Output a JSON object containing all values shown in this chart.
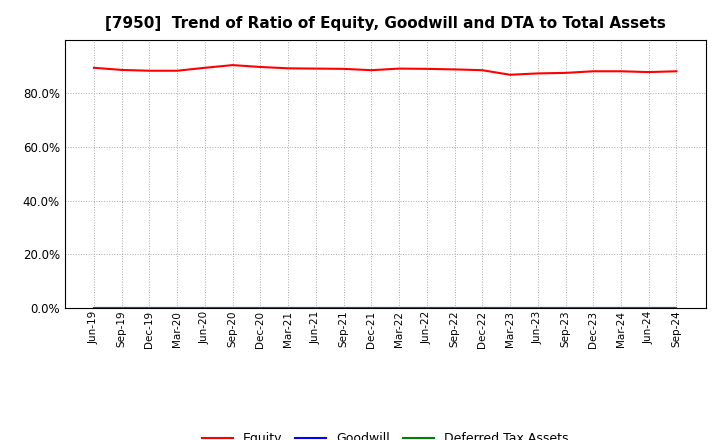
{
  "title": "[7950]  Trend of Ratio of Equity, Goodwill and DTA to Total Assets",
  "x_labels": [
    "Jun-19",
    "Sep-19",
    "Dec-19",
    "Mar-20",
    "Jun-20",
    "Sep-20",
    "Dec-20",
    "Mar-21",
    "Jun-21",
    "Sep-21",
    "Dec-21",
    "Mar-22",
    "Jun-22",
    "Sep-22",
    "Dec-22",
    "Mar-23",
    "Jun-23",
    "Sep-23",
    "Dec-23",
    "Mar-24",
    "Jun-24",
    "Sep-24"
  ],
  "equity": [
    0.895,
    0.887,
    0.884,
    0.884,
    0.895,
    0.905,
    0.898,
    0.893,
    0.892,
    0.891,
    0.886,
    0.892,
    0.891,
    0.889,
    0.886,
    0.869,
    0.874,
    0.876,
    0.882,
    0.882,
    0.879,
    0.882
  ],
  "goodwill": [
    0.0,
    0.0,
    0.0,
    0.0,
    0.0,
    0.0,
    0.0,
    0.0,
    0.0,
    0.0,
    0.0,
    0.0,
    0.0,
    0.0,
    0.0,
    0.0,
    0.0,
    0.0,
    0.0,
    0.0,
    0.0,
    0.0
  ],
  "dta": [
    0.0,
    0.0,
    0.0,
    0.0,
    0.0,
    0.0,
    0.0,
    0.0,
    0.0,
    0.0,
    0.0,
    0.0,
    0.0,
    0.0,
    0.0,
    0.0,
    0.0,
    0.0,
    0.0,
    0.0,
    0.0,
    0.0
  ],
  "equity_color": "#FF0000",
  "goodwill_color": "#0000FF",
  "dta_color": "#008000",
  "ylim": [
    0.0,
    1.0
  ],
  "yticks": [
    0.0,
    0.2,
    0.4,
    0.6,
    0.8
  ],
  "background_color": "#FFFFFF",
  "plot_bg_color": "#FFFFFF",
  "grid_color": "#AAAAAA",
  "title_fontsize": 11,
  "legend_labels": [
    "Equity",
    "Goodwill",
    "Deferred Tax Assets"
  ]
}
